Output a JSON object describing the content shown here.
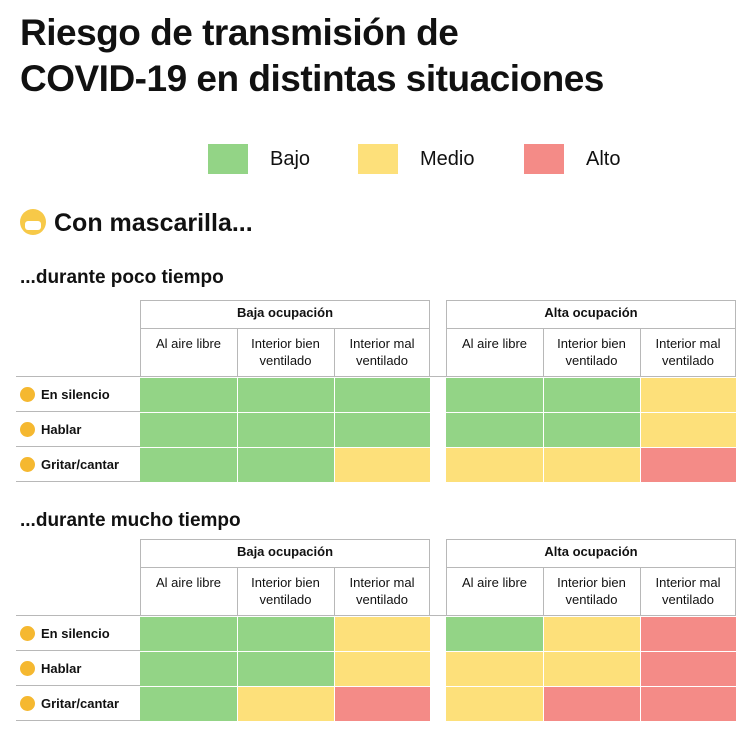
{
  "title_line1": "Riesgo de transmisión de",
  "title_line2": "COVID-19 en distintas situaciones",
  "legend": [
    {
      "label": "Bajo",
      "color": "#93d486"
    },
    {
      "label": "Medio",
      "color": "#fde07a"
    },
    {
      "label": "Alto",
      "color": "#f48b87"
    }
  ],
  "section_label": "Con mascarilla...",
  "tables": [
    {
      "subtitle": "...durante poco tiempo"
    },
    {
      "subtitle": "...durante mucho tiempo"
    }
  ],
  "groups": [
    "Baja ocupación",
    "Alta ocupación"
  ],
  "columns": [
    "Al aire libre",
    "Interior bien ventilado",
    "Interior mal ventilado"
  ],
  "rows": [
    "En silencio",
    "Hablar",
    "Gritar/cantar"
  ],
  "chart_data": {
    "type": "heatmap",
    "title": "Riesgo de transmisión de COVID-19 en distintas situaciones",
    "legend": [
      "Bajo",
      "Medio",
      "Alto"
    ],
    "group_labels": [
      "Baja ocupación",
      "Alta ocupación"
    ],
    "column_labels": [
      "Al aire libre",
      "Interior bien ventilado",
      "Interior mal ventilado"
    ],
    "row_labels": [
      "En silencio",
      "Hablar",
      "Gritar/cantar"
    ],
    "panels": [
      {
        "name": "...durante poco tiempo",
        "values": [
          [
            "Bajo",
            "Bajo",
            "Bajo",
            "Bajo",
            "Bajo",
            "Medio"
          ],
          [
            "Bajo",
            "Bajo",
            "Bajo",
            "Bajo",
            "Bajo",
            "Medio"
          ],
          [
            "Bajo",
            "Bajo",
            "Medio",
            "Medio",
            "Medio",
            "Alto"
          ]
        ]
      },
      {
        "name": "...durante mucho tiempo",
        "values": [
          [
            "Bajo",
            "Bajo",
            "Medio",
            "Bajo",
            "Medio",
            "Alto"
          ],
          [
            "Bajo",
            "Bajo",
            "Medio",
            "Medio",
            "Medio",
            "Alto"
          ],
          [
            "Bajo",
            "Medio",
            "Alto",
            "Medio",
            "Alto",
            "Alto"
          ]
        ]
      }
    ]
  }
}
